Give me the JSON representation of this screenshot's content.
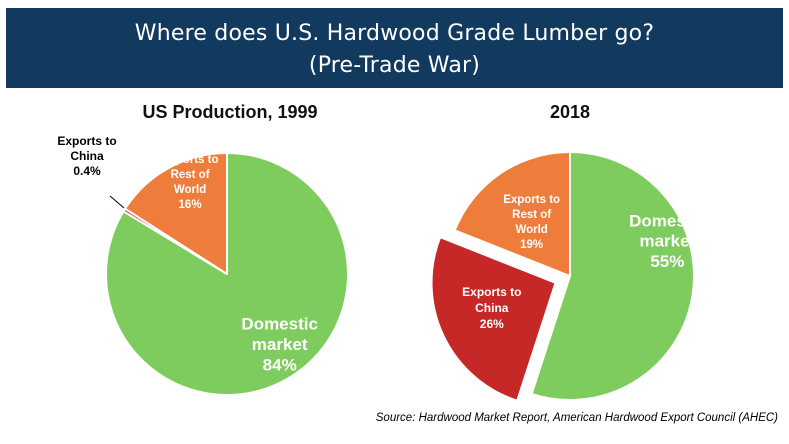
{
  "header": {
    "title_line1": "Where does U.S. Hardwood Grade Lumber go?",
    "title_line2": "(Pre-Trade War)",
    "background_color": "#123a5f"
  },
  "source": "Source: Hardwood Market Report, American Hardwood Export Council (AHEC)",
  "chart_data": [
    {
      "type": "pie",
      "title": "US Production, 1999",
      "slices": [
        {
          "name_lines": [
            "Domestic",
            "market"
          ],
          "value_label": "84%",
          "value": 84,
          "color": "#7fcc5e"
        },
        {
          "name_lines": [
            "Exports to",
            "China"
          ],
          "value_label": "0.4%",
          "value": 0.4,
          "color": "#c62828"
        },
        {
          "name_lines": [
            "Exports to",
            "Rest of",
            "World"
          ],
          "value_label": "16%",
          "value": 16,
          "color": "#ee7d3c"
        }
      ],
      "exploded": []
    },
    {
      "type": "pie",
      "title": "2018",
      "slices": [
        {
          "name_lines": [
            "Domestic",
            "market"
          ],
          "value_label": "55%",
          "value": 55,
          "color": "#7fcc5e"
        },
        {
          "name_lines": [
            "Exports to",
            "China"
          ],
          "value_label": "26%",
          "value": 26,
          "color": "#c62828"
        },
        {
          "name_lines": [
            "Exports to",
            "Rest of",
            "World"
          ],
          "value_label": "19%",
          "value": 19,
          "color": "#ee7d3c"
        }
      ],
      "exploded": [
        "Exports to China"
      ]
    }
  ]
}
